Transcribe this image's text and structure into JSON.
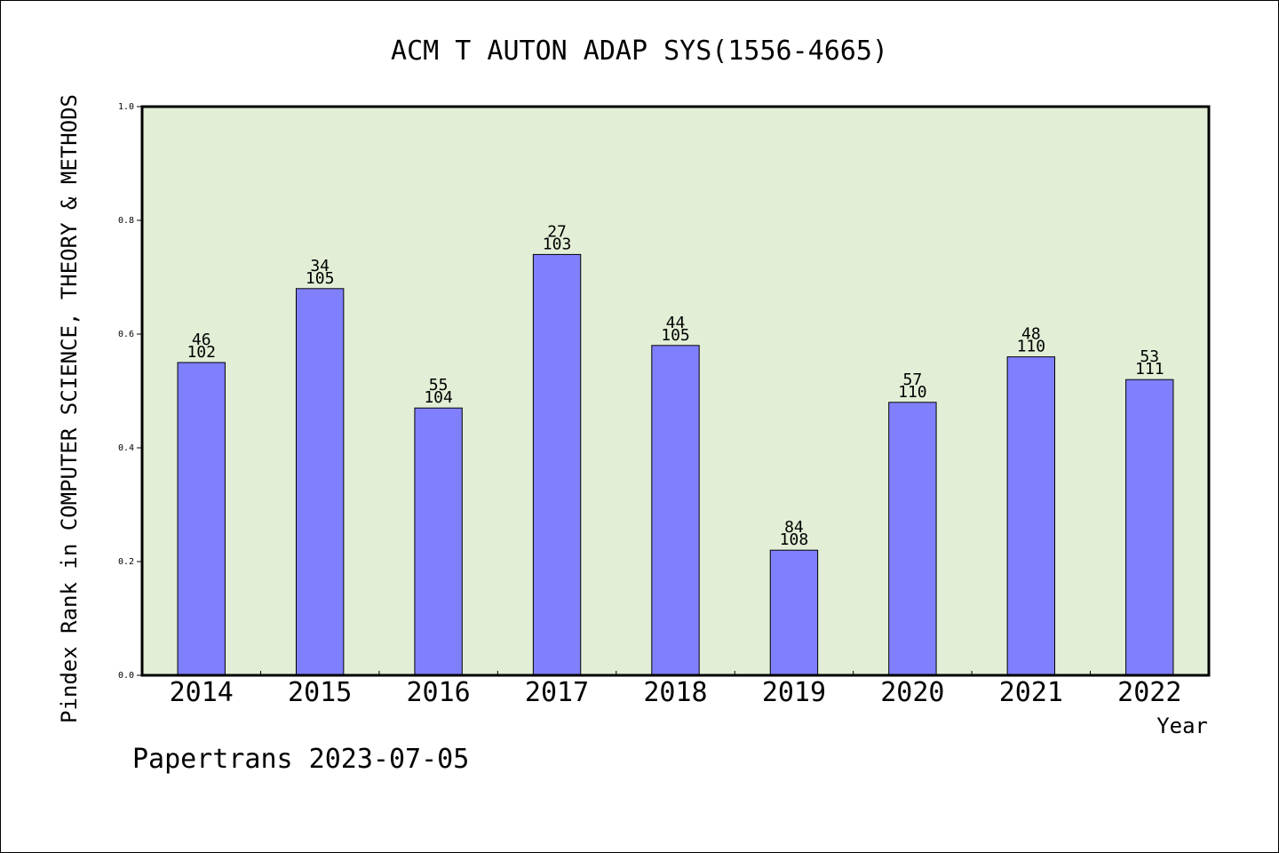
{
  "chart_data": {
    "type": "bar",
    "title": "ACM T AUTON ADAP SYS(1556-4665)",
    "xlabel": "Year",
    "ylabel": "Pindex Rank in COMPUTER SCIENCE, THEORY & METHODS",
    "ylim": [
      0,
      1.0
    ],
    "yticks": [
      "0.0",
      "0.2",
      "0.4",
      "0.6",
      "0.8",
      "1.0"
    ],
    "categories": [
      "2014",
      "2015",
      "2016",
      "2017",
      "2018",
      "2019",
      "2020",
      "2021",
      "2022"
    ],
    "values": [
      0.55,
      0.68,
      0.47,
      0.74,
      0.58,
      0.22,
      0.48,
      0.56,
      0.52
    ],
    "rank_labels": [
      "46",
      "34",
      "55",
      "27",
      "44",
      "84",
      "57",
      "48",
      "53"
    ],
    "total_labels": [
      "102",
      "105",
      "104",
      "103",
      "105",
      "108",
      "110",
      "110",
      "111"
    ],
    "grid": false,
    "colors": {
      "plot_bg": "#e2efd6",
      "bar": "#8080ff",
      "axis": "#000000"
    }
  },
  "footer": "Papertrans 2023-07-05"
}
